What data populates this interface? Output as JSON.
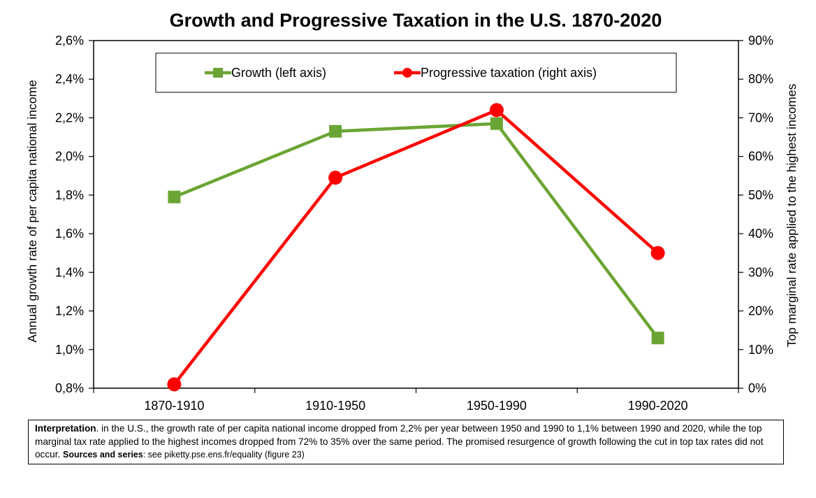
{
  "chart_data": {
    "type": "line",
    "title": "Growth and Progressive Taxation in the U.S. 1870-2020",
    "categories": [
      "1870-1910",
      "1910-1950",
      "1950-1990",
      "1990-2020"
    ],
    "y_left": {
      "label": "Annual growth rate of per capita national income",
      "range": [
        0.8,
        2.6
      ],
      "ticks": [
        "0,8%",
        "1,0%",
        "1,2%",
        "1,4%",
        "1,6%",
        "1,8%",
        "2,0%",
        "2,2%",
        "2,4%",
        "2,6%"
      ]
    },
    "y_right": {
      "label": "Top marginal rate applied to the highest incomes",
      "range": [
        0,
        90
      ],
      "ticks": [
        "0%",
        "10%",
        "20%",
        "30%",
        "40%",
        "50%",
        "60%",
        "70%",
        "80%",
        "90%"
      ]
    },
    "grid": false,
    "legend_position": "top",
    "series": [
      {
        "name": "Growth (left axis)",
        "axis": "left",
        "marker": "square",
        "color": "#6aa533",
        "values": [
          1.79,
          2.13,
          2.17,
          1.06
        ]
      },
      {
        "name": "Progressive taxation (right axis)",
        "axis": "right",
        "marker": "circle",
        "color": "#ff0000",
        "values": [
          1,
          54.5,
          72,
          35
        ]
      }
    ]
  },
  "interpretation": {
    "label": "Interpretation",
    "text": ". in the U.S., the growth rate of per capita national income dropped from 2,2% per year between 1950 and 1990 to 1,1% between 1990 and 2020, while the top marginal tax rate applied to the highest incomes dropped from 72% to 35% over the same period. The promised resurgence of growth following the cut in top tax rates did not occur. ",
    "sources_label": "Sources and series",
    "sources_text": ": see piketty.pse.ens.fr/equality (figure 23)"
  }
}
